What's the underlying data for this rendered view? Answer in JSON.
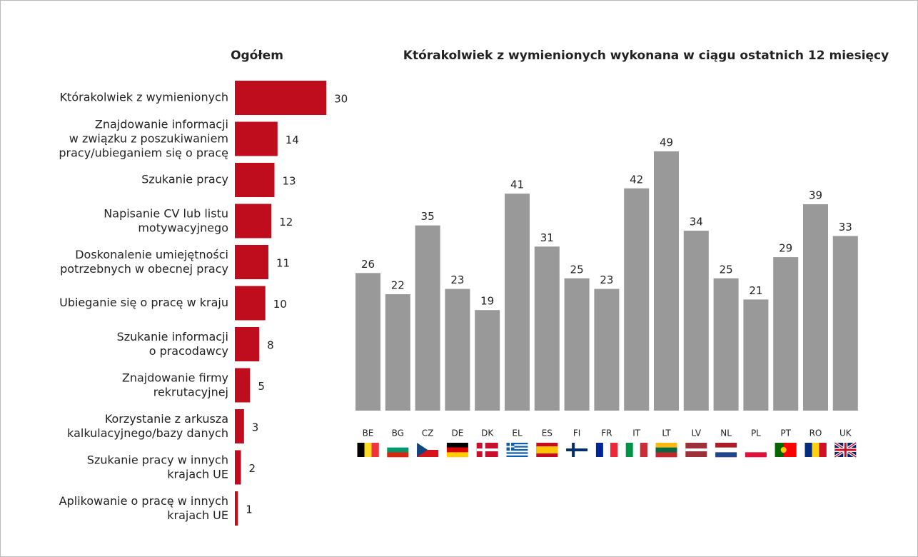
{
  "chart_data": [
    {
      "type": "hbar",
      "title": "Ogółem",
      "color": "#c00d1e",
      "categories": [
        "Którakolwiek z wymienionych",
        "Znajdowanie informacji\nw związku z poszukiwaniem\npracy/ubieganiem się o pracę",
        "Szukanie pracy",
        "Napisanie CV lub listu\nmotywacyjnego",
        "Doskonalenie umiejętności\npotrzebnych w obecnej pracy",
        "Ubieganie się o pracę w kraju",
        "Szukanie informacji\no pracodawcy",
        "Znajdowanie firmy\nrekrutacyjnej",
        "Korzystanie z arkusza\nkalkulacyjnego/bazy danych",
        "Szukanie pracy w innych\nkrajach UE",
        "Aplikowanie o pracę w innych\nkrajach UE"
      ],
      "values": [
        30,
        14,
        13,
        12,
        11,
        10,
        8,
        5,
        3,
        2,
        1
      ]
    },
    {
      "type": "bar",
      "title": "Którakolwiek z wymienionych wykonana w ciągu ostatnich 12 miesięcy",
      "color": "#999999",
      "categories": [
        "BE",
        "BG",
        "CZ",
        "DE",
        "DK",
        "EL",
        "ES",
        "FI",
        "FR",
        "IT",
        "LT",
        "LV",
        "NL",
        "PL",
        "PT",
        "RO",
        "UK"
      ],
      "values": [
        26,
        22,
        35,
        23,
        19,
        41,
        31,
        25,
        23,
        42,
        49,
        34,
        25,
        21,
        29,
        39,
        33
      ]
    }
  ]
}
